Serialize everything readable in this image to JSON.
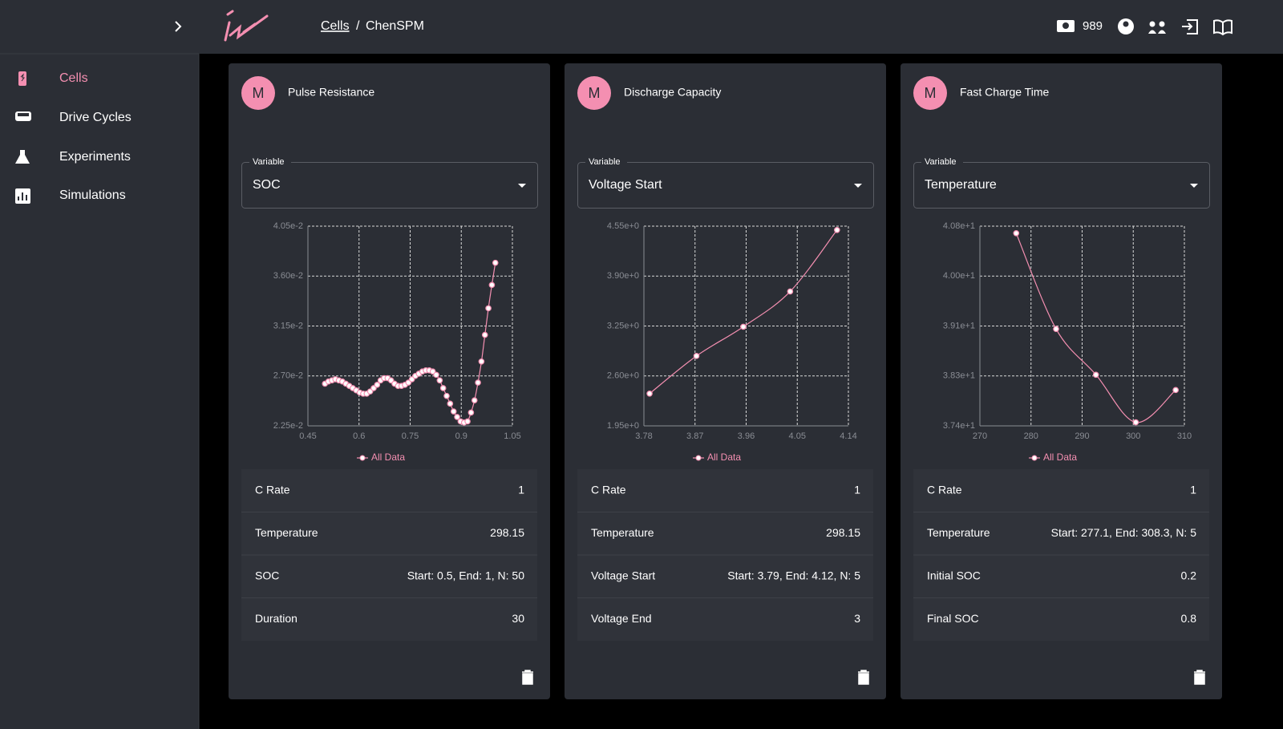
{
  "header": {
    "breadcrumb": [
      "Cells",
      "ChenSPM"
    ],
    "separator": "/",
    "credits": 989
  },
  "sidebar": {
    "items": [
      "Cells",
      "Drive Cycles",
      "Experiments",
      "Simulations"
    ]
  },
  "cards": [
    {
      "avatar": "M",
      "title": "Pulse Resistance",
      "variable_label": "Variable",
      "variable": "SOC",
      "params": [
        {
          "label": "C Rate",
          "value": 1
        },
        {
          "label": "Temperature",
          "value": 298.15
        },
        {
          "label": "SOC",
          "value": "Start: 0.5, End: 1, N: 50"
        },
        {
          "label": "Duration",
          "value": 30
        }
      ]
    },
    {
      "avatar": "M",
      "title": "Discharge Capacity",
      "variable_label": "Variable",
      "variable": "Voltage Start",
      "params": [
        {
          "label": "C Rate",
          "value": 1
        },
        {
          "label": "Temperature",
          "value": 298.15
        },
        {
          "label": "Voltage Start",
          "value": "Start: 3.79, End: 4.12, N: 5"
        },
        {
          "label": "Voltage End",
          "value": 3
        }
      ]
    },
    {
      "avatar": "M",
      "title": "Fast Charge Time",
      "variable_label": "Variable",
      "variable": "Temperature",
      "params": [
        {
          "label": "C Rate",
          "value": 1
        },
        {
          "label": "Temperature",
          "value": "Start: 277.1, End: 308.3, N: 5"
        },
        {
          "label": "Initial SOC",
          "value": 0.2
        },
        {
          "label": "Final SOC",
          "value": 0.8
        }
      ]
    }
  ],
  "chart_data": [
    {
      "type": "line",
      "grid": true,
      "x": [
        0.5,
        0.5102,
        0.5204,
        0.5306,
        0.5408,
        0.551,
        0.5612,
        0.5714,
        0.5816,
        0.5918,
        0.602,
        0.6122,
        0.6224,
        0.6327,
        0.6429,
        0.6531,
        0.6633,
        0.6735,
        0.6837,
        0.6939,
        0.7041,
        0.7143,
        0.7245,
        0.7347,
        0.7449,
        0.7551,
        0.7653,
        0.7755,
        0.7857,
        0.7959,
        0.8061,
        0.8163,
        0.8265,
        0.8367,
        0.8469,
        0.8571,
        0.8673,
        0.8776,
        0.8878,
        0.898,
        0.9082,
        0.9184,
        0.9286,
        0.9388,
        0.949,
        0.9592,
        0.9694,
        0.9796,
        0.9898,
        1.0
      ],
      "series": [
        {
          "name": "All Data",
          "color": "#f48fb1",
          "values": [
            0.0263,
            0.0265,
            0.0266,
            0.0267,
            0.0266,
            0.0265,
            0.0263,
            0.0261,
            0.0259,
            0.0257,
            0.0255,
            0.0254,
            0.0254,
            0.0256,
            0.0259,
            0.0262,
            0.0266,
            0.0268,
            0.0268,
            0.0266,
            0.0263,
            0.0261,
            0.0261,
            0.0262,
            0.0264,
            0.0267,
            0.027,
            0.0272,
            0.0274,
            0.0275,
            0.0275,
            0.0274,
            0.0271,
            0.0266,
            0.0259,
            0.0252,
            0.0245,
            0.0238,
            0.0233,
            0.0229,
            0.0228,
            0.0229,
            0.0237,
            0.0248,
            0.0264,
            0.0283,
            0.0307,
            0.0331,
            0.0352,
            0.0372
          ]
        }
      ],
      "xlim": [
        0.45,
        1.05
      ],
      "xticks": [
        0.45,
        0.6,
        0.75,
        0.9,
        1.05
      ],
      "ylim": [
        0.0225,
        0.0405
      ],
      "yticks": [
        {
          "value": 0.0225,
          "label": "2.25e-2"
        },
        {
          "value": 0.027,
          "label": "2.70e-2"
        },
        {
          "value": 0.0315,
          "label": "3.15e-2"
        },
        {
          "value": 0.036,
          "label": "3.60e-2"
        },
        {
          "value": 0.0405,
          "label": "4.05e-2"
        }
      ]
    },
    {
      "type": "line",
      "grid": true,
      "x": [
        3.79,
        3.8725,
        3.955,
        4.0375,
        4.12
      ],
      "series": [
        {
          "name": "All Data",
          "color": "#f48fb1",
          "values": [
            2.37,
            2.86,
            3.24,
            3.7,
            4.5
          ]
        }
      ],
      "xlim": [
        3.78,
        4.14
      ],
      "xticks": [
        3.78,
        3.87,
        3.96,
        4.05,
        4.14
      ],
      "ylim": [
        1.95,
        4.55
      ],
      "yticks": [
        {
          "value": 1.95,
          "label": "1.95e+0"
        },
        {
          "value": 2.6,
          "label": "2.60e+0"
        },
        {
          "value": 3.25,
          "label": "3.25e+0"
        },
        {
          "value": 3.9,
          "label": "3.90e+0"
        },
        {
          "value": 4.55,
          "label": "4.55e+0"
        }
      ]
    },
    {
      "type": "line",
      "grid": true,
      "x": [
        277.1,
        284.9,
        292.7,
        300.5,
        308.3
      ],
      "series": [
        {
          "name": "All Data",
          "color": "#f48fb1",
          "values": [
            40.68,
            39.05,
            38.27,
            37.46,
            38.01
          ]
        }
      ],
      "xlim": [
        270,
        310
      ],
      "xticks": [
        270,
        280,
        290,
        300,
        310
      ],
      "ylim": [
        37.4,
        40.8
      ],
      "yticks": [
        {
          "value": 37.4,
          "label": "3.74e+1"
        },
        {
          "value": 38.25,
          "label": "3.83e+1"
        },
        {
          "value": 39.1,
          "label": "3.91e+1"
        },
        {
          "value": 39.95,
          "label": "4.00e+1"
        },
        {
          "value": 40.8,
          "label": "4.08e+1"
        }
      ]
    }
  ]
}
